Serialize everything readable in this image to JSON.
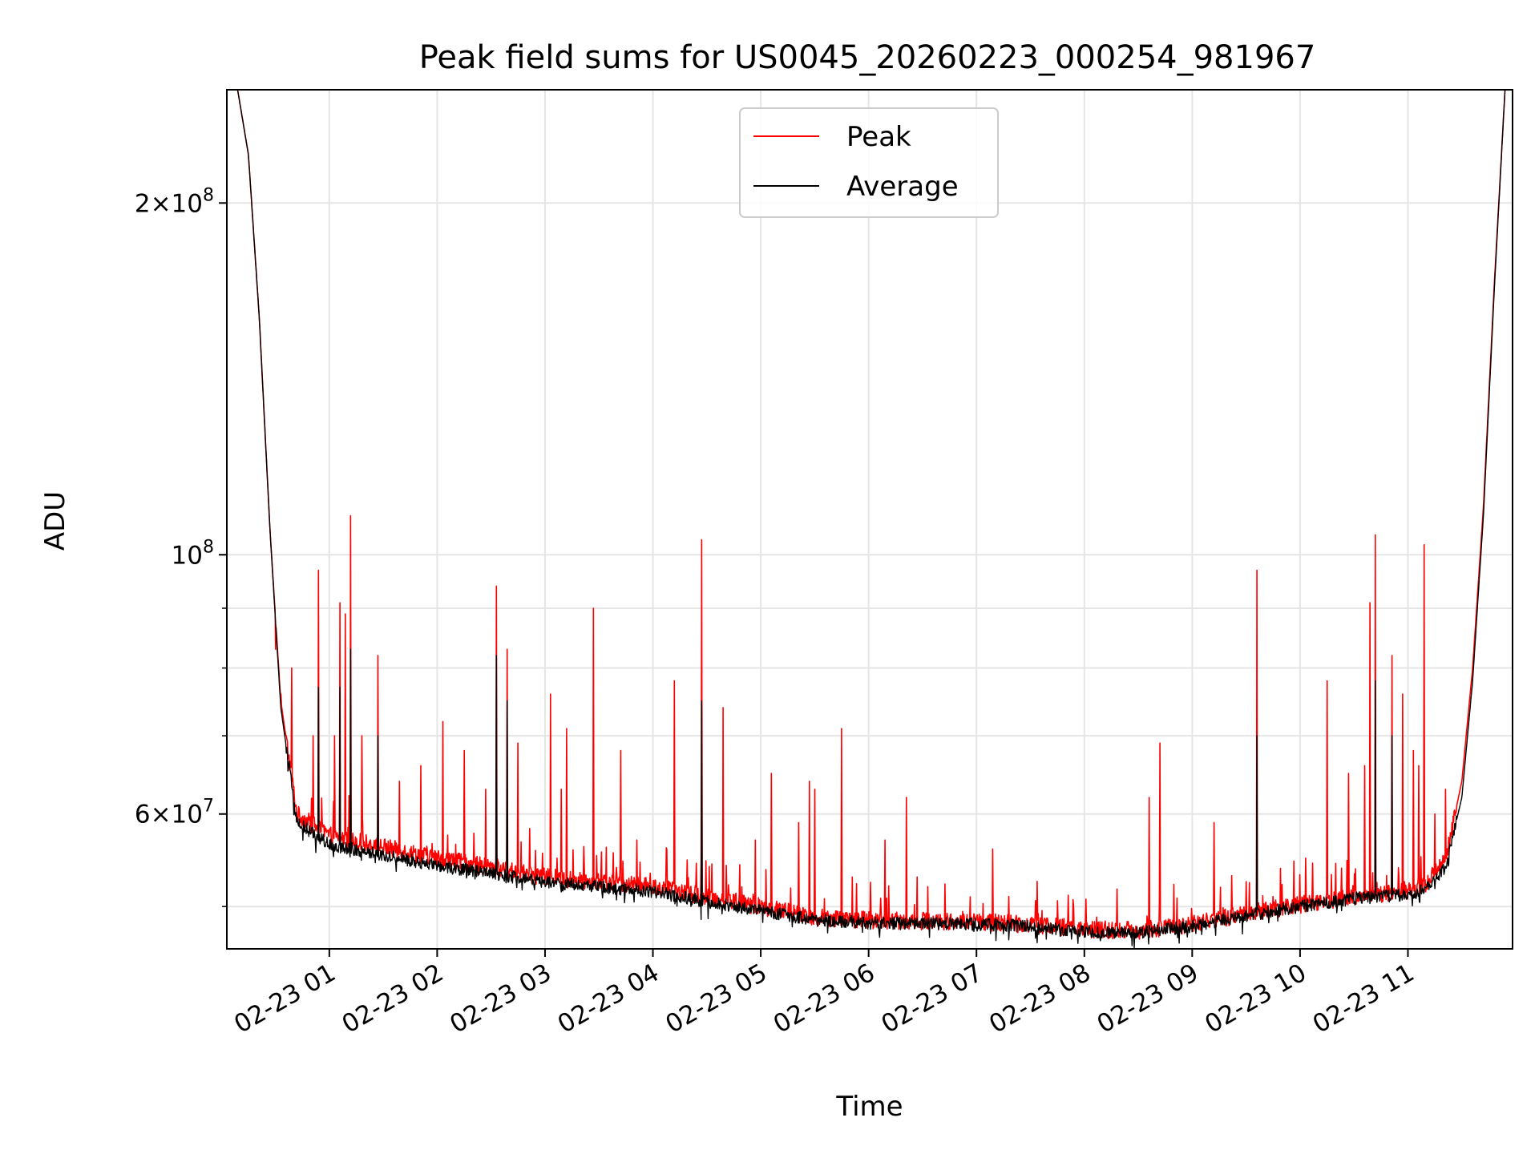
{
  "chart_data": {
    "type": "line",
    "title": "Peak field sums for US0045_20260223_000254_981967",
    "xlabel": "Time",
    "ylabel": "ADU",
    "yscale": "log",
    "ylim": [
      46000000,
      250000000
    ],
    "xlim_hours": [
      0.05,
      11.97
    ],
    "x_ticks": [
      {
        "hour": 1,
        "label": "02-23 01"
      },
      {
        "hour": 2,
        "label": "02-23 02"
      },
      {
        "hour": 3,
        "label": "02-23 03"
      },
      {
        "hour": 4,
        "label": "02-23 04"
      },
      {
        "hour": 5,
        "label": "02-23 05"
      },
      {
        "hour": 6,
        "label": "02-23 06"
      },
      {
        "hour": 7,
        "label": "02-23 07"
      },
      {
        "hour": 8,
        "label": "02-23 08"
      },
      {
        "hour": 9,
        "label": "02-23 09"
      },
      {
        "hour": 10,
        "label": "02-23 10"
      },
      {
        "hour": 11,
        "label": "02-23 11"
      }
    ],
    "y_major_ticks": [
      {
        "value": 200000000,
        "mantissa": "2",
        "exp": "8"
      },
      {
        "value": 100000000,
        "mantissa": "",
        "exp": "8"
      },
      {
        "value": 60000000,
        "mantissa": "6",
        "exp": "7"
      }
    ],
    "y_minor_ticks": [
      50000000,
      70000000,
      80000000,
      90000000
    ],
    "grid": true,
    "legend_position": "top-center",
    "series": [
      {
        "name": "Peak",
        "color": "#ff0000",
        "baseline": [
          [
            0.05,
            250000000
          ],
          [
            0.15,
            250000000
          ],
          [
            0.25,
            220000000
          ],
          [
            0.35,
            160000000
          ],
          [
            0.45,
            105000000
          ],
          [
            0.55,
            75000000
          ],
          [
            0.7,
            60000000
          ],
          [
            1,
            57500000
          ],
          [
            2,
            55000000
          ],
          [
            3,
            53000000
          ],
          [
            4,
            52000000
          ],
          [
            4.5,
            51000000
          ],
          [
            5,
            50000000
          ],
          [
            5.5,
            49000000
          ],
          [
            6,
            48700000
          ],
          [
            7,
            48500000
          ],
          [
            7.5,
            48300000
          ],
          [
            8,
            47800000
          ],
          [
            8.5,
            47700000
          ],
          [
            9,
            48300000
          ],
          [
            9.5,
            49300000
          ],
          [
            10,
            50200000
          ],
          [
            10.5,
            51000000
          ],
          [
            11,
            51500000
          ],
          [
            11.2,
            52500000
          ],
          [
            11.35,
            55000000
          ],
          [
            11.5,
            64000000
          ],
          [
            11.6,
            80000000
          ],
          [
            11.7,
            110000000
          ],
          [
            11.8,
            170000000
          ],
          [
            11.9,
            250000000
          ],
          [
            11.97,
            250000000
          ]
        ],
        "spikes": [
          [
            0.5,
            83000000
          ],
          [
            0.55,
            76000000
          ],
          [
            0.65,
            80000000
          ],
          [
            0.85,
            70000000
          ],
          [
            0.9,
            97000000
          ],
          [
            1.05,
            70000000
          ],
          [
            1.1,
            91000000
          ],
          [
            1.15,
            89000000
          ],
          [
            1.2,
            108000000
          ],
          [
            1.3,
            70000000
          ],
          [
            1.45,
            82000000
          ],
          [
            1.65,
            64000000
          ],
          [
            1.85,
            66000000
          ],
          [
            2.05,
            72000000
          ],
          [
            2.25,
            68000000
          ],
          [
            2.45,
            63000000
          ],
          [
            2.55,
            94000000
          ],
          [
            2.65,
            83000000
          ],
          [
            2.75,
            69000000
          ],
          [
            3.05,
            76000000
          ],
          [
            3.15,
            63000000
          ],
          [
            3.2,
            71000000
          ],
          [
            3.45,
            90000000
          ],
          [
            3.7,
            68000000
          ],
          [
            3.85,
            57000000
          ],
          [
            4.2,
            78000000
          ],
          [
            4.45,
            103000000
          ],
          [
            4.65,
            74000000
          ],
          [
            4.95,
            57000000
          ],
          [
            5.1,
            65000000
          ],
          [
            5.35,
            59000000
          ],
          [
            5.45,
            64000000
          ],
          [
            5.5,
            63000000
          ],
          [
            5.75,
            71000000
          ],
          [
            5.85,
            53000000
          ],
          [
            6.15,
            57000000
          ],
          [
            6.35,
            62000000
          ],
          [
            6.45,
            53000000
          ],
          [
            6.55,
            52000000
          ],
          [
            7.15,
            56000000
          ],
          [
            7.3,
            51000000
          ],
          [
            7.9,
            50000000
          ],
          [
            8.6,
            62000000
          ],
          [
            8.7,
            69000000
          ],
          [
            9.2,
            59000000
          ],
          [
            9.6,
            97000000
          ],
          [
            9.75,
            51000000
          ],
          [
            10.05,
            55000000
          ],
          [
            10.25,
            78000000
          ],
          [
            10.45,
            65000000
          ],
          [
            10.6,
            66000000
          ],
          [
            10.65,
            91000000
          ],
          [
            10.7,
            104000000
          ],
          [
            10.85,
            82000000
          ],
          [
            10.95,
            76000000
          ],
          [
            11.05,
            68000000
          ],
          [
            11.1,
            66000000
          ],
          [
            11.15,
            102000000
          ],
          [
            11.25,
            60000000
          ],
          [
            11.35,
            63000000
          ]
        ]
      },
      {
        "name": "Average",
        "color": "#000000",
        "baseline": [
          [
            0.05,
            250000000
          ],
          [
            0.15,
            250000000
          ],
          [
            0.25,
            220000000
          ],
          [
            0.35,
            160000000
          ],
          [
            0.45,
            105000000
          ],
          [
            0.55,
            74000000
          ],
          [
            0.7,
            59000000
          ],
          [
            1,
            56500000
          ],
          [
            2,
            54200000
          ],
          [
            3,
            52500000
          ],
          [
            4,
            51500000
          ],
          [
            4.5,
            50500000
          ],
          [
            5,
            49600000
          ],
          [
            5.5,
            48700000
          ],
          [
            6,
            48400000
          ],
          [
            7,
            48300000
          ],
          [
            7.5,
            48100000
          ],
          [
            8,
            47600000
          ],
          [
            8.5,
            47500000
          ],
          [
            9,
            48100000
          ],
          [
            9.5,
            49100000
          ],
          [
            10,
            50000000
          ],
          [
            10.5,
            50800000
          ],
          [
            11,
            51200000
          ],
          [
            11.2,
            52000000
          ],
          [
            11.35,
            54000000
          ],
          [
            11.5,
            62000000
          ],
          [
            11.6,
            78000000
          ],
          [
            11.7,
            108000000
          ],
          [
            11.8,
            168000000
          ],
          [
            11.9,
            250000000
          ],
          [
            11.97,
            250000000
          ]
        ],
        "spikes": [
          [
            0.9,
            77000000
          ],
          [
            1.1,
            77000000
          ],
          [
            1.2,
            83000000
          ],
          [
            1.45,
            70000000
          ],
          [
            2.55,
            82000000
          ],
          [
            2.65,
            75000000
          ],
          [
            4.45,
            75000000
          ],
          [
            9.6,
            70000000
          ],
          [
            10.7,
            78000000
          ],
          [
            10.85,
            70000000
          ]
        ]
      }
    ]
  }
}
